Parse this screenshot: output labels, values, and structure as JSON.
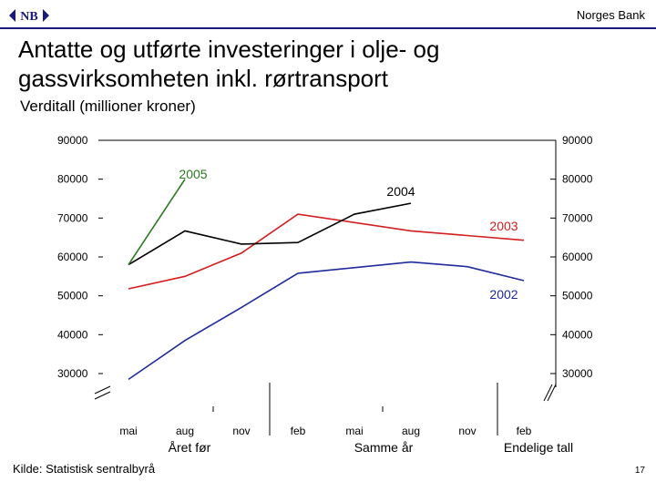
{
  "header": {
    "logo_icon": "norges-bank-logo-icon",
    "brand": "Norges Bank"
  },
  "title": "Antatte og utførte investeringer i olje- og gassvirksomheten inkl. rørtransport",
  "unit": "Verditall (millioner kroner)",
  "chart_data": {
    "type": "line",
    "title": "Antatte og utførte investeringer i olje- og gassvirksomheten inkl. rørtransport",
    "ylabel": "Verditall (millioner kroner)",
    "ylim": [
      30000,
      90000
    ],
    "y_ticks": [
      90000,
      80000,
      70000,
      60000,
      50000,
      40000,
      30000
    ],
    "y_axis_break": true,
    "x": [
      "mai",
      "aug",
      "nov",
      "feb",
      "mai",
      "aug",
      "nov",
      "feb"
    ],
    "groups": [
      "Året før",
      "Samme år",
      "Endelige tall"
    ],
    "series": [
      {
        "name": "2002",
        "color": "#1f2a9c",
        "values": [
          28500,
          38500,
          47000,
          55800,
          null,
          58700,
          57500,
          53900
        ]
      },
      {
        "name": "2003",
        "color": "#d21e1e",
        "values": [
          51800,
          55000,
          61000,
          71000,
          null,
          66700,
          null,
          64300
        ]
      },
      {
        "name": "2004",
        "color": "#000000",
        "values": [
          58000,
          66700,
          63300,
          63700,
          71000,
          73800,
          null,
          null
        ]
      },
      {
        "name": "2005",
        "color": "#2a7a1f",
        "values": [
          58000,
          80000,
          null,
          null,
          null,
          null,
          null,
          null
        ]
      }
    ],
    "grid": false
  },
  "footer": {
    "source": "Kilde: Statistisk sentralbyrå",
    "page": "17"
  }
}
